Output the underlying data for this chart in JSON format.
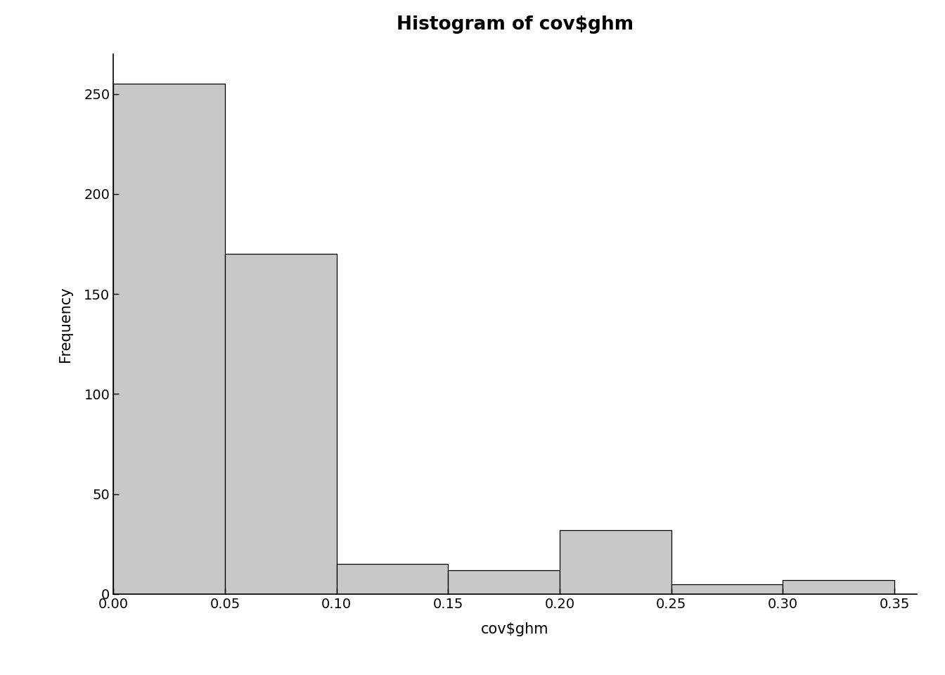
{
  "title": "Histogram of cov$ghm",
  "xlabel": "cov$ghm",
  "ylabel": "Frequency",
  "bar_edges": [
    0.0,
    0.05,
    0.1,
    0.15,
    0.2,
    0.25,
    0.3,
    0.35
  ],
  "bar_heights": [
    255,
    170,
    15,
    12,
    32,
    5,
    7
  ],
  "bar_color": "#c8c8c8",
  "bar_edgecolor": "#000000",
  "xlim": [
    0.0,
    0.36
  ],
  "ylim": [
    0,
    270
  ],
  "yticks": [
    0,
    50,
    100,
    150,
    200,
    250
  ],
  "xticks": [
    0.0,
    0.05,
    0.1,
    0.15,
    0.2,
    0.25,
    0.3,
    0.35
  ],
  "background_color": "#ffffff",
  "title_fontsize": 19,
  "label_fontsize": 15,
  "tick_fontsize": 14
}
